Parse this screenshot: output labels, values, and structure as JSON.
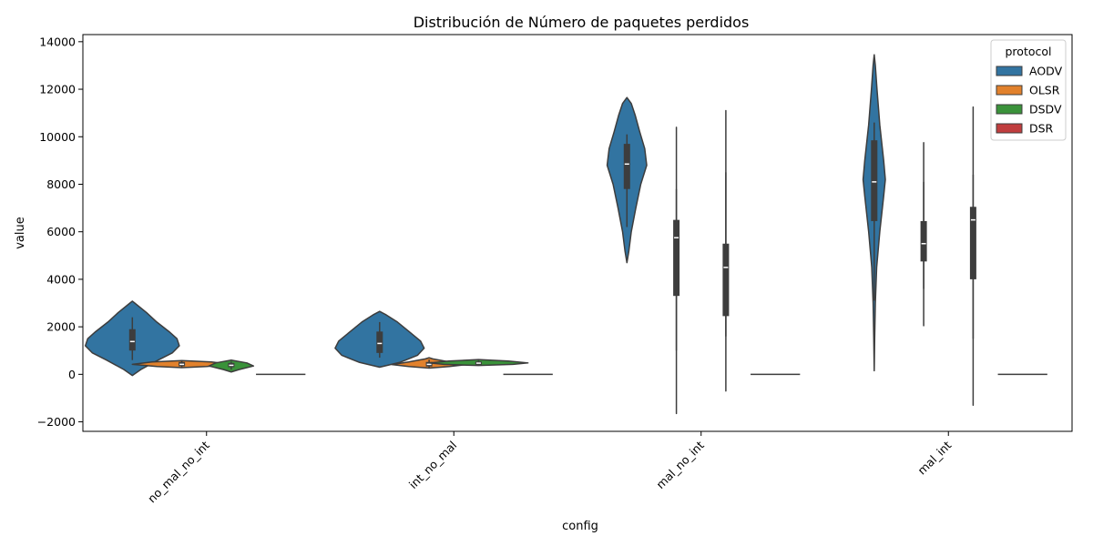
{
  "chart_data": {
    "type": "violin",
    "title": "Distribución de Número de paquetes perdidos",
    "xlabel": "config",
    "ylabel": "value",
    "categories": [
      "no_mal_no_int",
      "int_no_mal",
      "mal_no_int",
      "mal_int"
    ],
    "ylim": [
      -2400,
      14300
    ],
    "yticks": [
      -2000,
      0,
      2000,
      4000,
      6000,
      8000,
      10000,
      12000,
      14000
    ],
    "ytick_labels": [
      "−2000",
      "0",
      "2000",
      "4000",
      "6000",
      "8000",
      "10000",
      "12000",
      "14000"
    ],
    "legend": {
      "title": "protocol",
      "position": "top-right"
    },
    "series": [
      {
        "name": "AODV",
        "color": "#3274a1",
        "groups": [
          {
            "category": "no_mal_no_int",
            "q1": 1000,
            "median": 1380,
            "q3": 1900,
            "whisker_low": 600,
            "whisker_high": 2400,
            "profile": [
              [
                -50,
                0
              ],
              [
                200,
                0.18
              ],
              [
                600,
                0.55
              ],
              [
                900,
                0.85
              ],
              [
                1200,
                1.0
              ],
              [
                1500,
                0.95
              ],
              [
                1800,
                0.78
              ],
              [
                2200,
                0.52
              ],
              [
                2600,
                0.3
              ],
              [
                3000,
                0.05
              ],
              [
                3080,
                0
              ]
            ],
            "max_half_width_data": 0.19
          },
          {
            "category": "int_no_mal",
            "q1": 900,
            "median": 1300,
            "q3": 1800,
            "whisker_low": 700,
            "whisker_high": 2200,
            "profile": [
              [
                300,
                0
              ],
              [
                500,
                0.45
              ],
              [
                800,
                0.85
              ],
              [
                1100,
                1.0
              ],
              [
                1400,
                0.92
              ],
              [
                1800,
                0.66
              ],
              [
                2200,
                0.4
              ],
              [
                2500,
                0.15
              ],
              [
                2650,
                0
              ]
            ],
            "max_half_width_data": 0.18
          },
          {
            "category": "mal_no_int",
            "q1": 7800,
            "median": 8850,
            "q3": 9700,
            "whisker_low": 6200,
            "whisker_high": 10100,
            "profile": [
              [
                4700,
                0
              ],
              [
                5200,
                0.1
              ],
              [
                6000,
                0.22
              ],
              [
                7000,
                0.45
              ],
              [
                8000,
                0.7
              ],
              [
                8800,
                1.0
              ],
              [
                9500,
                0.9
              ],
              [
                10200,
                0.65
              ],
              [
                10900,
                0.42
              ],
              [
                11400,
                0.22
              ],
              [
                11650,
                0
              ]
            ],
            "max_half_width_data": 0.08
          },
          {
            "category": "mal_int",
            "q1": 6450,
            "median": 8100,
            "q3": 9850,
            "whisker_low": 3100,
            "whisker_high": 10600,
            "profile": [
              [
                150,
                0
              ],
              [
                1500,
                0.04
              ],
              [
                3000,
                0.1
              ],
              [
                4500,
                0.22
              ],
              [
                6000,
                0.5
              ],
              [
                7500,
                0.85
              ],
              [
                8200,
                1.0
              ],
              [
                9000,
                0.85
              ],
              [
                10500,
                0.5
              ],
              [
                12000,
                0.25
              ],
              [
                13000,
                0.1
              ],
              [
                13450,
                0
              ]
            ],
            "max_half_width_data": 0.045
          }
        ]
      },
      {
        "name": "OLSR",
        "color": "#e1812c",
        "groups": [
          {
            "category": "no_mal_no_int",
            "q1": 340,
            "median": 420,
            "q3": 520,
            "whisker_low": 300,
            "whisker_high": 560,
            "profile": [
              [
                280,
                0
              ],
              [
                330,
                0.5
              ],
              [
                420,
                1.0
              ],
              [
                520,
                0.6
              ],
              [
                580,
                0
              ]
            ],
            "max_half_width_data": 0.2
          },
          {
            "category": "int_no_mal",
            "q1": 330,
            "median": 420,
            "q3": 520,
            "whisker_low": 280,
            "whisker_high": 620,
            "profile": [
              [
                260,
                0
              ],
              [
                330,
                0.55
              ],
              [
                410,
                1.0
              ],
              [
                520,
                0.55
              ],
              [
                650,
                0.1
              ],
              [
                700,
                0
              ]
            ],
            "max_half_width_data": 0.15
          },
          {
            "category": "mal_no_int",
            "q1": 3300,
            "median": 5750,
            "q3": 6500,
            "whisker_low": 1000,
            "whisker_high": 7800,
            "profile": [
              [
                -1650,
                0
              ],
              [
                10400,
                0
              ]
            ],
            "max_half_width_data": 0.002
          },
          {
            "category": "mal_int",
            "q1": 4750,
            "median": 5500,
            "q3": 6450,
            "whisker_low": 3600,
            "whisker_high": 8100,
            "profile": [
              [
                2050,
                0
              ],
              [
                9750,
                0
              ]
            ],
            "max_half_width_data": 0.002
          }
        ]
      },
      {
        "name": "DSDV",
        "color": "#3a923a",
        "groups": [
          {
            "category": "no_mal_no_int",
            "q1": 300,
            "median": 380,
            "q3": 480,
            "whisker_low": 200,
            "whisker_high": 540,
            "profile": [
              [
                100,
                0
              ],
              [
                200,
                0.35
              ],
              [
                350,
                1.0
              ],
              [
                480,
                0.7
              ],
              [
                600,
                0
              ]
            ],
            "max_half_width_data": 0.09
          },
          {
            "category": "int_no_mal",
            "q1": 400,
            "median": 470,
            "q3": 540,
            "whisker_low": 380,
            "whisker_high": 580,
            "profile": [
              [
                370,
                0
              ],
              [
                420,
                0.7
              ],
              [
                480,
                1.0
              ],
              [
                560,
                0.6
              ],
              [
                620,
                0
              ]
            ],
            "max_half_width_data": 0.2
          },
          {
            "category": "mal_no_int",
            "q1": 2450,
            "median": 4500,
            "q3": 5500,
            "whisker_low": 1600,
            "whisker_high": 8500,
            "profile": [
              [
                -700,
                0
              ],
              [
                11100,
                0
              ]
            ],
            "max_half_width_data": 0.002
          },
          {
            "category": "mal_int",
            "q1": 4000,
            "median": 6500,
            "q3": 7050,
            "whisker_low": 1500,
            "whisker_high": 8400,
            "profile": [
              [
                -1300,
                0
              ],
              [
                11250,
                0
              ]
            ],
            "max_half_width_data": 0.002
          }
        ]
      },
      {
        "name": "DSR",
        "color": "#c03d3e",
        "groups": [
          {
            "category": "no_mal_no_int",
            "median": 0
          },
          {
            "category": "int_no_mal",
            "median": 0
          },
          {
            "category": "mal_no_int",
            "median": 0
          },
          {
            "category": "mal_int",
            "median": 0
          }
        ]
      }
    ]
  }
}
